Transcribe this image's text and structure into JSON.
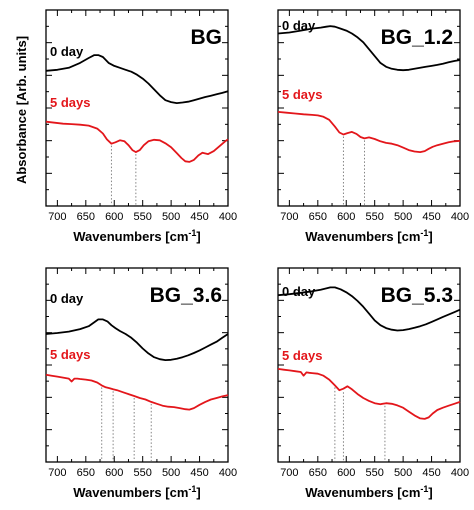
{
  "figure": {
    "y_axis_label": "Absorbance [Arb. units]",
    "colors": {
      "day0": "#000000",
      "day5": "#e3161b",
      "guide": "#777777"
    }
  },
  "chart_data": [
    {
      "type": "line",
      "title": "BG",
      "xlabel": "Wavenumbers [cm",
      "xlabel_superscript": "-1",
      "xlabel_suffix": "]",
      "xlim": [
        720,
        400
      ],
      "x_reversed": true,
      "xticks": [
        700,
        650,
        600,
        550,
        500,
        450,
        400
      ],
      "ylim": [
        0,
        1
      ],
      "series": [
        {
          "name": "0 day",
          "color": "#000000",
          "x": [
            720,
            700,
            680,
            660,
            645,
            635,
            628,
            620,
            610,
            600,
            590,
            580,
            570,
            560,
            550,
            540,
            530,
            520,
            510,
            500,
            490,
            480,
            470,
            460,
            450,
            440,
            430,
            420,
            410,
            400
          ],
          "y": [
            0.69,
            0.695,
            0.705,
            0.73,
            0.755,
            0.77,
            0.77,
            0.76,
            0.73,
            0.715,
            0.705,
            0.695,
            0.685,
            0.67,
            0.65,
            0.625,
            0.595,
            0.565,
            0.54,
            0.53,
            0.525,
            0.528,
            0.532,
            0.54,
            0.548,
            0.556,
            0.563,
            0.57,
            0.577,
            0.585
          ]
        },
        {
          "name": "5 days",
          "color": "#e3161b",
          "x": [
            720,
            705,
            690,
            675,
            660,
            645,
            630,
            620,
            613,
            605,
            598,
            590,
            582,
            575,
            568,
            562,
            555,
            548,
            540,
            530,
            520,
            510,
            500,
            490,
            482,
            475,
            468,
            460,
            452,
            445,
            435,
            425,
            415,
            405,
            400
          ],
          "y": [
            0.43,
            0.425,
            0.42,
            0.418,
            0.415,
            0.41,
            0.395,
            0.37,
            0.34,
            0.318,
            0.325,
            0.335,
            0.33,
            0.31,
            0.285,
            0.275,
            0.285,
            0.31,
            0.33,
            0.338,
            0.335,
            0.32,
            0.3,
            0.27,
            0.245,
            0.228,
            0.225,
            0.235,
            0.258,
            0.272,
            0.265,
            0.28,
            0.305,
            0.33,
            0.34
          ]
        }
      ],
      "guides": [
        {
          "x": 605,
          "y_top": 0.318
        },
        {
          "x": 562,
          "y_top": 0.275
        }
      ]
    },
    {
      "type": "line",
      "title": "BG_1.2",
      "xlabel": "Wavenumbers [cm",
      "xlabel_superscript": "-1",
      "xlabel_suffix": "]",
      "xlim": [
        720,
        400
      ],
      "x_reversed": true,
      "xticks": [
        700,
        650,
        600,
        550,
        500,
        450,
        400
      ],
      "ylim": [
        0,
        1
      ],
      "series": [
        {
          "name": "0 day",
          "color": "#000000",
          "x": [
            720,
            700,
            680,
            660,
            645,
            635,
            628,
            620,
            610,
            600,
            590,
            580,
            570,
            560,
            550,
            540,
            530,
            520,
            510,
            500,
            490,
            480,
            470,
            460,
            450,
            440,
            430,
            420,
            410,
            400
          ],
          "y": [
            0.88,
            0.885,
            0.895,
            0.905,
            0.91,
            0.915,
            0.918,
            0.915,
            0.905,
            0.895,
            0.88,
            0.86,
            0.835,
            0.8,
            0.765,
            0.73,
            0.71,
            0.7,
            0.695,
            0.693,
            0.695,
            0.7,
            0.705,
            0.71,
            0.715,
            0.72,
            0.726,
            0.733,
            0.74,
            0.745
          ]
        },
        {
          "name": "5 days",
          "color": "#e3161b",
          "x": [
            720,
            705,
            690,
            675,
            660,
            650,
            640,
            630,
            620,
            612,
            605,
            598,
            590,
            582,
            575,
            568,
            560,
            550,
            540,
            530,
            520,
            510,
            500,
            490,
            480,
            470,
            462,
            455,
            448,
            440,
            430,
            420,
            410,
            400
          ],
          "y": [
            0.48,
            0.476,
            0.472,
            0.468,
            0.465,
            0.462,
            0.455,
            0.44,
            0.405,
            0.375,
            0.365,
            0.372,
            0.378,
            0.368,
            0.352,
            0.345,
            0.35,
            0.342,
            0.33,
            0.322,
            0.318,
            0.31,
            0.298,
            0.285,
            0.278,
            0.275,
            0.28,
            0.292,
            0.302,
            0.31,
            0.318,
            0.325,
            0.33,
            0.332
          ]
        }
      ],
      "guides": [
        {
          "x": 605,
          "y_top": 0.365
        },
        {
          "x": 568,
          "y_top": 0.345
        }
      ]
    },
    {
      "type": "line",
      "title": "BG_3.6",
      "xlabel": "Wavenumbers [cm",
      "xlabel_superscript": "-1",
      "xlabel_suffix": "]",
      "xlim": [
        720,
        400
      ],
      "x_reversed": true,
      "xticks": [
        700,
        650,
        600,
        550,
        500,
        450,
        400
      ],
      "ylim": [
        0,
        1
      ],
      "series": [
        {
          "name": "0 day",
          "color": "#000000",
          "x": [
            720,
            700,
            680,
            660,
            645,
            635,
            628,
            620,
            612,
            605,
            598,
            590,
            580,
            570,
            560,
            550,
            540,
            530,
            520,
            510,
            500,
            490,
            480,
            470,
            460,
            450,
            440,
            430,
            420,
            410,
            400
          ],
          "y": [
            0.66,
            0.665,
            0.672,
            0.685,
            0.7,
            0.72,
            0.735,
            0.735,
            0.725,
            0.705,
            0.69,
            0.675,
            0.66,
            0.64,
            0.615,
            0.585,
            0.56,
            0.54,
            0.53,
            0.525,
            0.527,
            0.532,
            0.54,
            0.55,
            0.562,
            0.575,
            0.59,
            0.605,
            0.62,
            0.64,
            0.66
          ]
        },
        {
          "name": "5 days",
          "color": "#e3161b",
          "x": [
            720,
            710,
            700,
            690,
            680,
            675,
            670,
            665,
            660,
            650,
            640,
            630,
            622,
            615,
            608,
            602,
            595,
            585,
            575,
            565,
            555,
            545,
            535,
            525,
            515,
            505,
            495,
            485,
            475,
            468,
            460,
            450,
            440,
            430,
            420,
            410,
            400
          ],
          "y": [
            0.45,
            0.445,
            0.44,
            0.435,
            0.43,
            0.415,
            0.43,
            0.43,
            0.428,
            0.425,
            0.42,
            0.41,
            0.395,
            0.385,
            0.38,
            0.375,
            0.37,
            0.36,
            0.35,
            0.34,
            0.33,
            0.322,
            0.31,
            0.3,
            0.29,
            0.285,
            0.283,
            0.278,
            0.272,
            0.27,
            0.278,
            0.295,
            0.31,
            0.322,
            0.33,
            0.338,
            0.345
          ]
        }
      ],
      "guides": [
        {
          "x": 622,
          "y_top": 0.395
        },
        {
          "x": 602,
          "y_top": 0.375
        },
        {
          "x": 565,
          "y_top": 0.34
        },
        {
          "x": 535,
          "y_top": 0.31
        }
      ]
    },
    {
      "type": "line",
      "title": "BG_5.3",
      "xlabel": "Wavenumbers [cm",
      "xlabel_superscript": "-1",
      "xlabel_suffix": "]",
      "xlim": [
        720,
        400
      ],
      "x_reversed": true,
      "xticks": [
        700,
        650,
        600,
        550,
        500,
        450,
        400
      ],
      "ylim": [
        0,
        1
      ],
      "series": [
        {
          "name": "0 day",
          "color": "#000000",
          "x": [
            720,
            700,
            680,
            660,
            645,
            635,
            628,
            620,
            610,
            600,
            590,
            580,
            570,
            560,
            550,
            540,
            530,
            520,
            510,
            500,
            490,
            480,
            470,
            460,
            450,
            440,
            430,
            420,
            410,
            400
          ],
          "y": [
            0.86,
            0.865,
            0.872,
            0.88,
            0.888,
            0.895,
            0.9,
            0.9,
            0.89,
            0.875,
            0.855,
            0.83,
            0.8,
            0.765,
            0.73,
            0.705,
            0.69,
            0.682,
            0.678,
            0.68,
            0.685,
            0.692,
            0.7,
            0.71,
            0.722,
            0.735,
            0.748,
            0.76,
            0.772,
            0.785
          ]
        },
        {
          "name": "5 days",
          "color": "#e3161b",
          "x": [
            720,
            710,
            700,
            690,
            680,
            675,
            670,
            665,
            660,
            650,
            640,
            630,
            620,
            612,
            605,
            598,
            590,
            580,
            570,
            560,
            550,
            540,
            530,
            520,
            510,
            500,
            490,
            480,
            470,
            462,
            455,
            448,
            440,
            430,
            420,
            410,
            400
          ],
          "y": [
            0.48,
            0.476,
            0.472,
            0.468,
            0.464,
            0.445,
            0.462,
            0.46,
            0.458,
            0.455,
            0.445,
            0.425,
            0.395,
            0.37,
            0.378,
            0.39,
            0.375,
            0.35,
            0.33,
            0.315,
            0.303,
            0.298,
            0.303,
            0.3,
            0.292,
            0.28,
            0.26,
            0.24,
            0.225,
            0.222,
            0.23,
            0.25,
            0.268,
            0.28,
            0.29,
            0.3,
            0.31
          ]
        }
      ],
      "guides": [
        {
          "x": 620,
          "y_top": 0.395
        },
        {
          "x": 605,
          "y_top": 0.37
        },
        {
          "x": 532,
          "y_top": 0.3
        }
      ]
    }
  ]
}
